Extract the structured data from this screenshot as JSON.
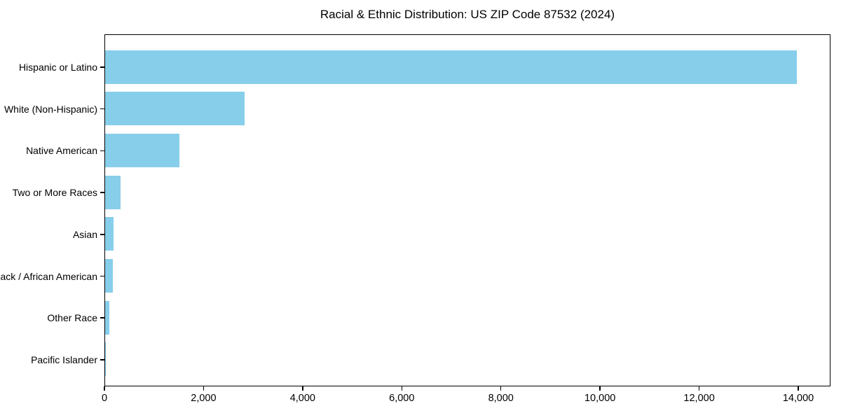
{
  "chart_data": {
    "type": "bar",
    "orientation": "horizontal",
    "title": "Racial & Ethnic Distribution: US ZIP Code 87532 (2024)",
    "categories": [
      "Hispanic or Latino",
      "White (Non-Hispanic)",
      "Native American",
      "Two or More Races",
      "Asian",
      "Black / African American",
      "Other Race",
      "Pacific Islander"
    ],
    "values": [
      13960,
      2810,
      1500,
      310,
      170,
      150,
      80,
      10
    ],
    "xlabel": "",
    "ylabel": "",
    "xlim": [
      0,
      14650
    ],
    "x_ticks": [
      0,
      2000,
      4000,
      6000,
      8000,
      10000,
      12000,
      14000
    ],
    "x_tick_labels": [
      "0",
      "2,000",
      "4,000",
      "6,000",
      "8,000",
      "10,000",
      "12,000",
      "14,000"
    ],
    "bar_color": "#87CEEB",
    "grid": false,
    "legend_position": "none"
  },
  "colors": {
    "bar": "#87CEEB",
    "axis": "#000000",
    "text": "#000000",
    "background": "#FFFFFF"
  }
}
